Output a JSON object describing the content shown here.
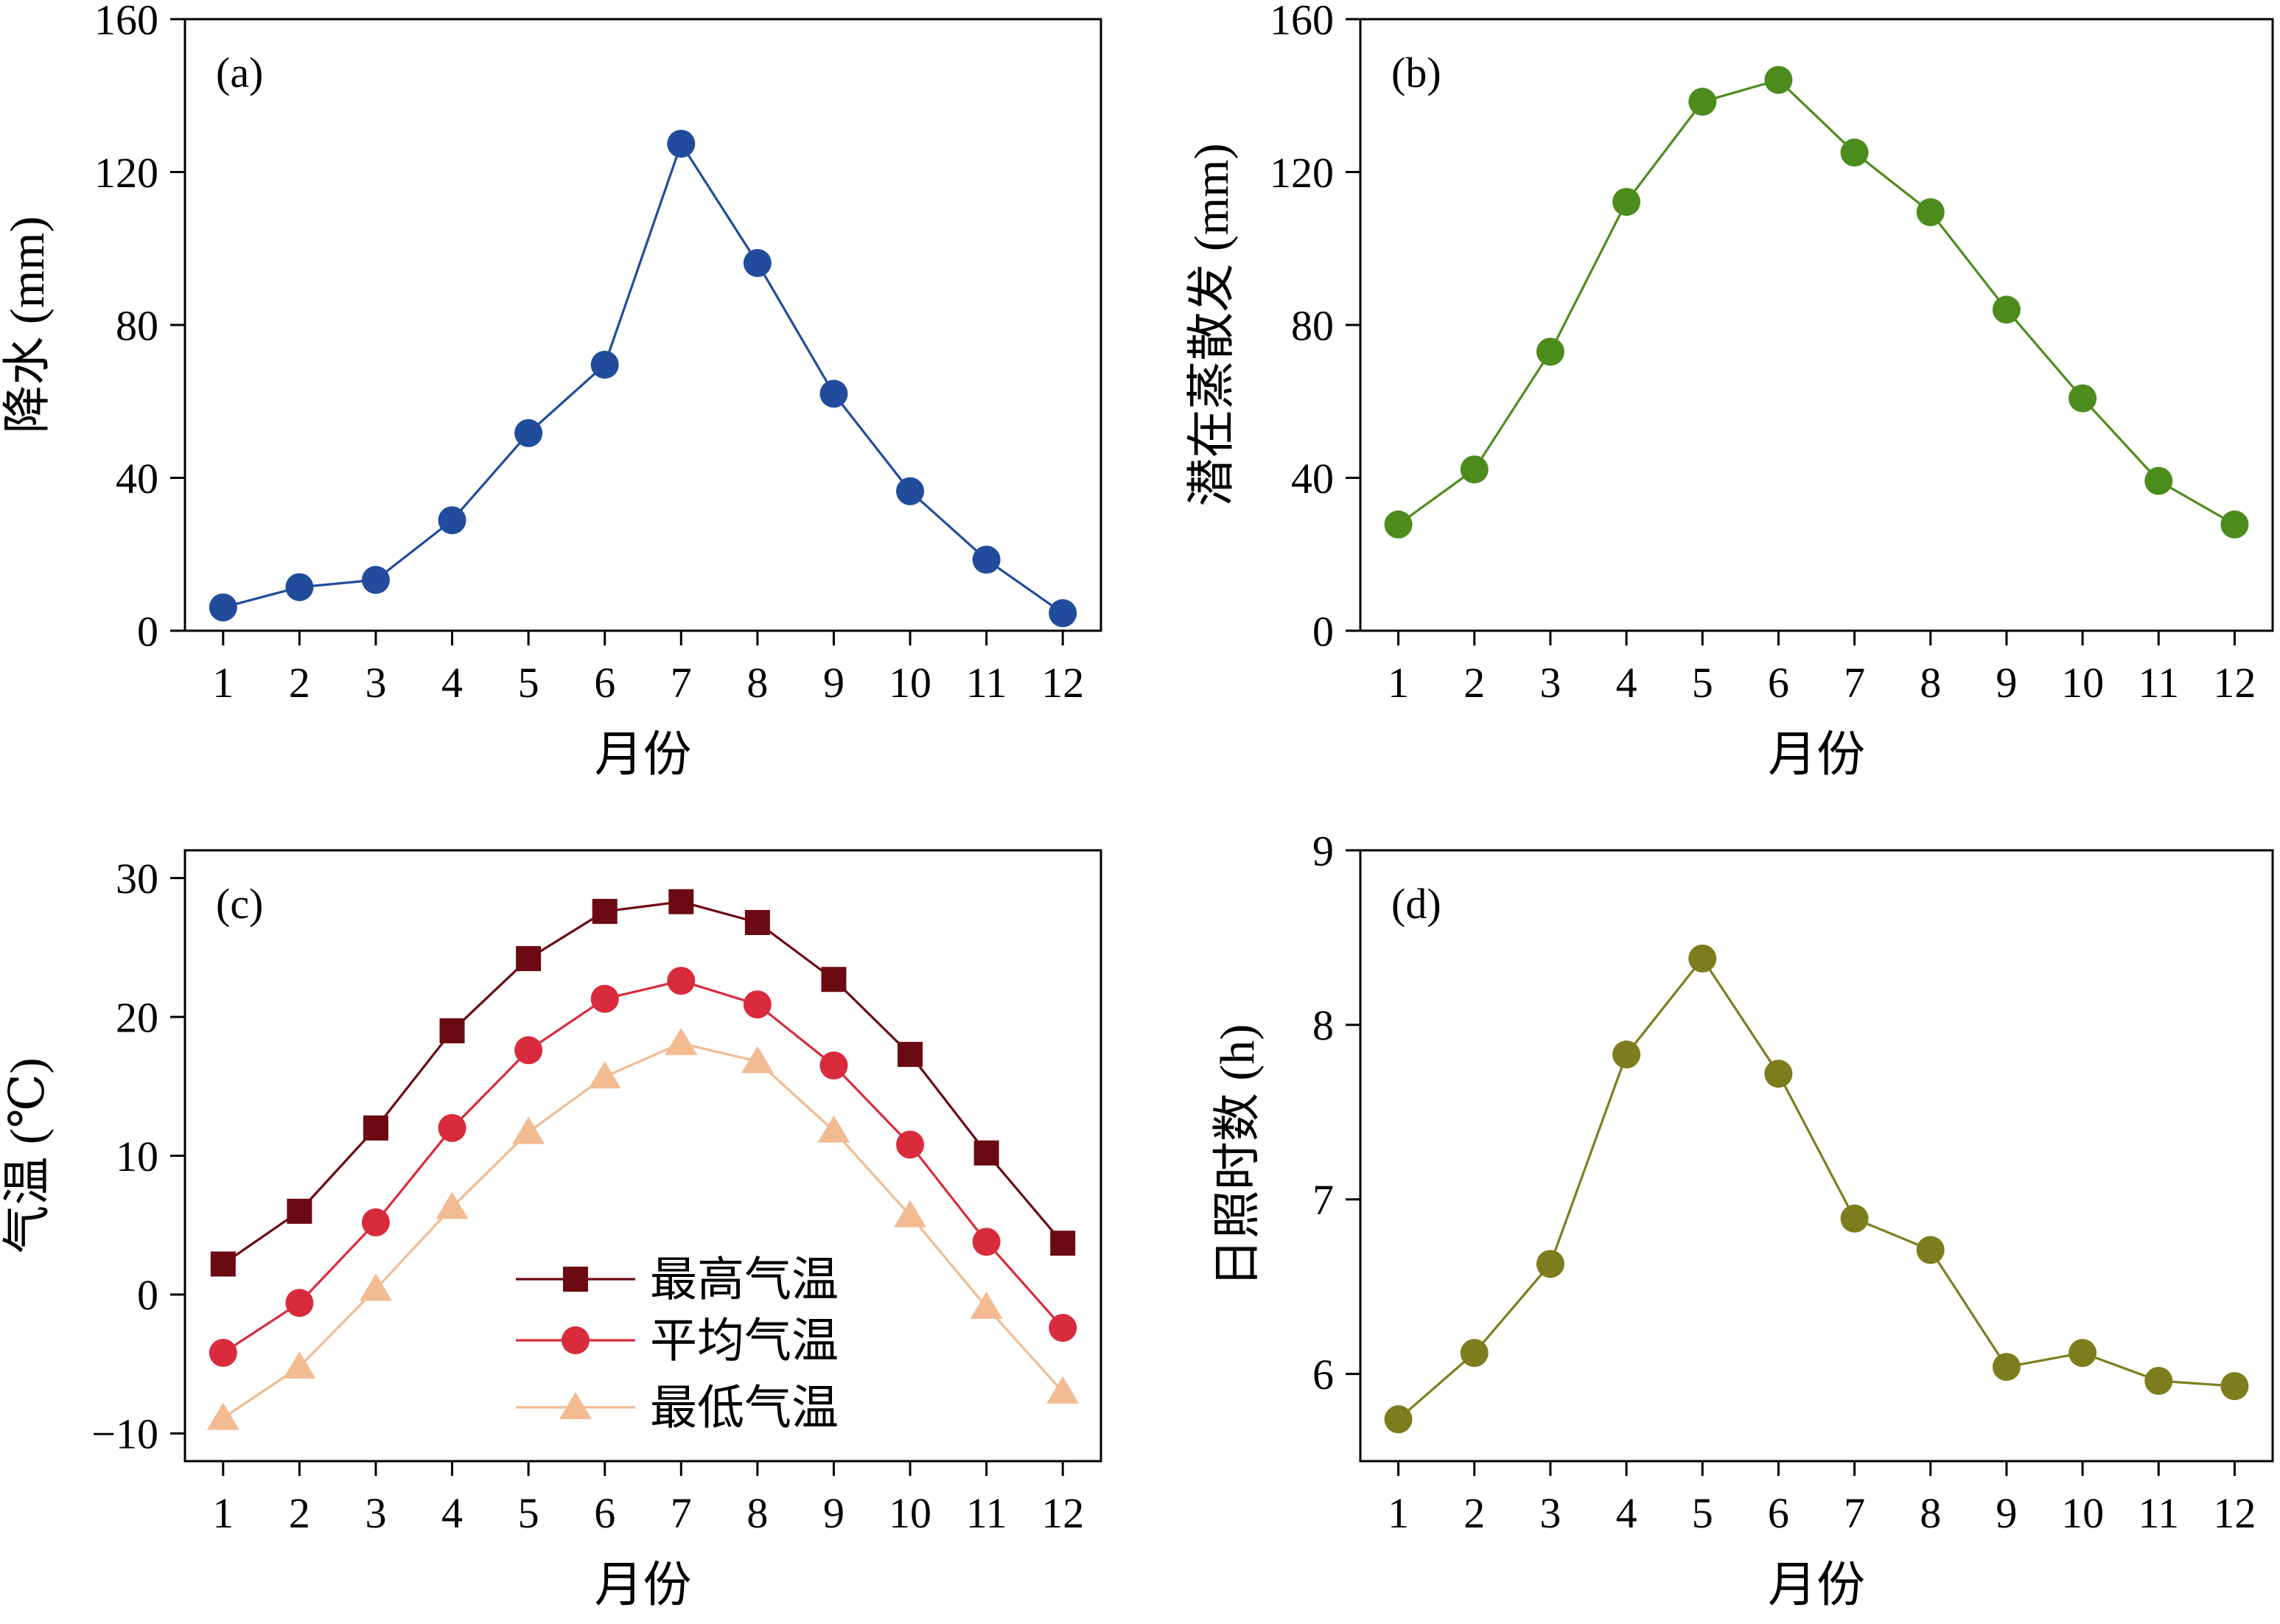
{
  "chart_data": [
    {
      "panel_label": "(a)",
      "type": "line",
      "xlabel": "月份",
      "ylabel": "降水 (mm)",
      "x": [
        1,
        2,
        3,
        4,
        5,
        6,
        7,
        8,
        9,
        10,
        11,
        12
      ],
      "xlim": [
        0.5,
        12.5
      ],
      "ylim": [
        0,
        160
      ],
      "yticks": [
        0,
        40,
        80,
        120,
        160
      ],
      "ytick_labels": [
        "0",
        "40",
        "80",
        "120",
        "160"
      ],
      "grid": false,
      "series": [
        {
          "values": [
            6.1,
            11.4,
            13.3,
            28.9,
            51.7,
            69.6,
            127.4,
            96.2,
            62.0,
            36.5,
            18.6,
            4.6
          ],
          "color": "#214c9c"
        }
      ]
    },
    {
      "panel_label": "(b)",
      "type": "line",
      "xlabel": "月份",
      "ylabel": "潜在蒸散发 (mm)",
      "x": [
        1,
        2,
        3,
        4,
        5,
        6,
        7,
        8,
        9,
        10,
        11,
        12
      ],
      "xlim": [
        0.5,
        12.5
      ],
      "ylim": [
        0,
        160
      ],
      "yticks": [
        0,
        40,
        80,
        120,
        160
      ],
      "ytick_labels": [
        "0",
        "40",
        "80",
        "120",
        "160"
      ],
      "grid": false,
      "series": [
        {
          "values": [
            27.8,
            42.2,
            73.0,
            112.2,
            138.4,
            144.1,
            125.1,
            109.5,
            84.0,
            60.8,
            39.2,
            27.8
          ],
          "color": "#4c8c1c"
        }
      ]
    },
    {
      "panel_label": "(c)",
      "type": "line",
      "xlabel": "月份",
      "ylabel": "气温 (℃)",
      "x": [
        1,
        2,
        3,
        4,
        5,
        6,
        7,
        8,
        9,
        10,
        11,
        12
      ],
      "xlim": [
        0.5,
        12.5
      ],
      "ylim": [
        -12,
        32
      ],
      "yticks": [
        -10,
        0,
        10,
        20,
        30
      ],
      "ytick_labels": [
        "−10",
        "0",
        "10",
        "20",
        "30"
      ],
      "grid": false,
      "series": [
        {
          "name": "最高气温",
          "values": [
            2.2,
            6.0,
            12.0,
            19.0,
            24.2,
            27.6,
            28.3,
            26.8,
            22.7,
            17.3,
            10.2,
            3.7
          ],
          "color": "#6b0a12"
        },
        {
          "name": "平均气温",
          "values": [
            -4.2,
            -0.6,
            5.2,
            12.0,
            17.6,
            21.3,
            22.6,
            20.9,
            16.5,
            10.8,
            3.8,
            -2.4
          ],
          "color": "#d92b3c"
        },
        {
          "name": "最低气温",
          "values": [
            -8.9,
            -5.2,
            0.4,
            6.3,
            11.7,
            15.7,
            18.1,
            16.8,
            11.8,
            5.7,
            -0.9,
            -7.0
          ],
          "color": "#f2bb92"
        }
      ]
    },
    {
      "panel_label": "(d)",
      "type": "line",
      "xlabel": "月份",
      "ylabel": "日照时数 (h)",
      "x": [
        1,
        2,
        3,
        4,
        5,
        6,
        7,
        8,
        9,
        10,
        11,
        12
      ],
      "xlim": [
        0.5,
        12.5
      ],
      "ylim": [
        5.5,
        9
      ],
      "yticks": [
        6,
        7,
        8,
        9
      ],
      "ytick_labels": [
        "6",
        "7",
        "8",
        "9"
      ],
      "grid": false,
      "series": [
        {
          "values": [
            5.74,
            6.12,
            6.63,
            7.83,
            8.38,
            7.72,
            6.89,
            6.71,
            6.04,
            6.12,
            5.96,
            5.93
          ],
          "color": "#7d7d1e"
        }
      ]
    }
  ]
}
